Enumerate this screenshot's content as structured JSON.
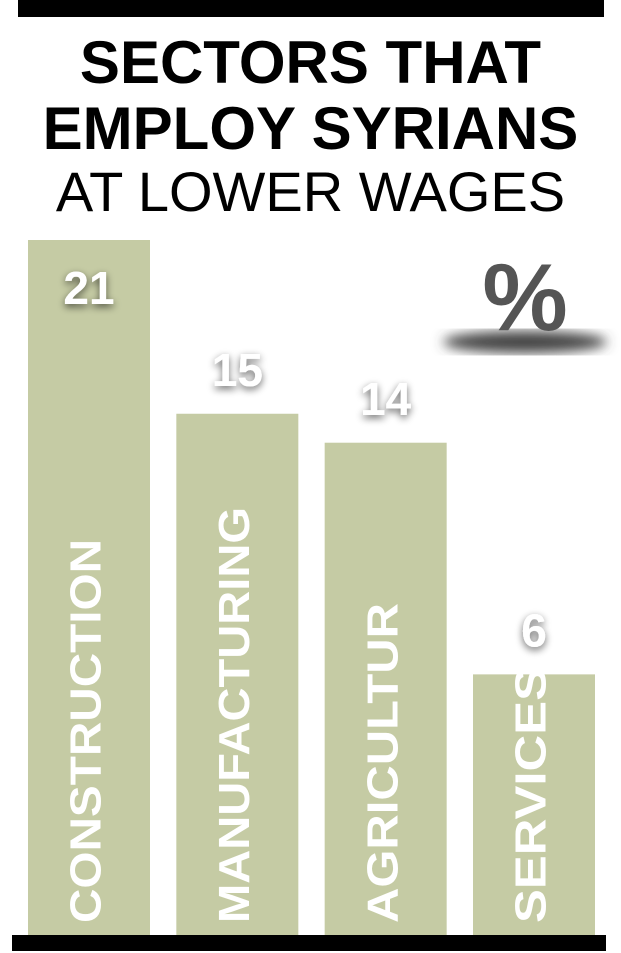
{
  "chart_data": {
    "type": "bar",
    "title": "SECTORS THAT EMPLOY SYRIANS",
    "subtitle": "AT LOWER WAGES",
    "unit_label": "%",
    "categories": [
      "CONSTRUCTION",
      "MANUFACTURING",
      "AGRICULTUR",
      "SERVICES"
    ],
    "values": [
      21,
      15,
      14,
      6
    ],
    "color": "#c5cba4",
    "ylim": [
      -3,
      21
    ]
  }
}
